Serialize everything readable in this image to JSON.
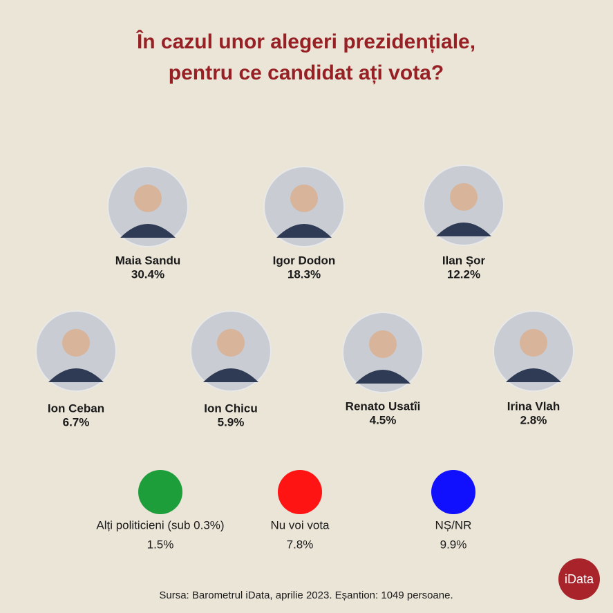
{
  "title_lines": [
    "În cazul unor alegeri prezidențiale,",
    "pentru ce candidat ați vota?"
  ],
  "candidates": [
    {
      "name": "Maia Sandu",
      "percent": "30.4%"
    },
    {
      "name": "Igor Dodon",
      "percent": "18.3%"
    },
    {
      "name": "Ilan Șor",
      "percent": "12.2%"
    },
    {
      "name": "Ion Ceban",
      "percent": "6.7%"
    },
    {
      "name": "Ion Chicu",
      "percent": "5.9%"
    },
    {
      "name": "Renato Usatîi",
      "percent": "4.5%"
    },
    {
      "name": "Irina Vlah",
      "percent": "2.8%"
    }
  ],
  "others": [
    {
      "name": "Alți politicieni (sub 0.3%)",
      "percent": "1.5%",
      "color": "#1e9e3a"
    },
    {
      "name": "Nu voi vota",
      "percent": "7.8%",
      "color": "#ff1414"
    },
    {
      "name": "NȘ/NR",
      "percent": "9.9%",
      "color": "#1010ff"
    }
  ],
  "source": "Sursa: Barometrul iData, aprilie 2023. Eșantion: 1049 persoane.",
  "logo": "iData"
}
